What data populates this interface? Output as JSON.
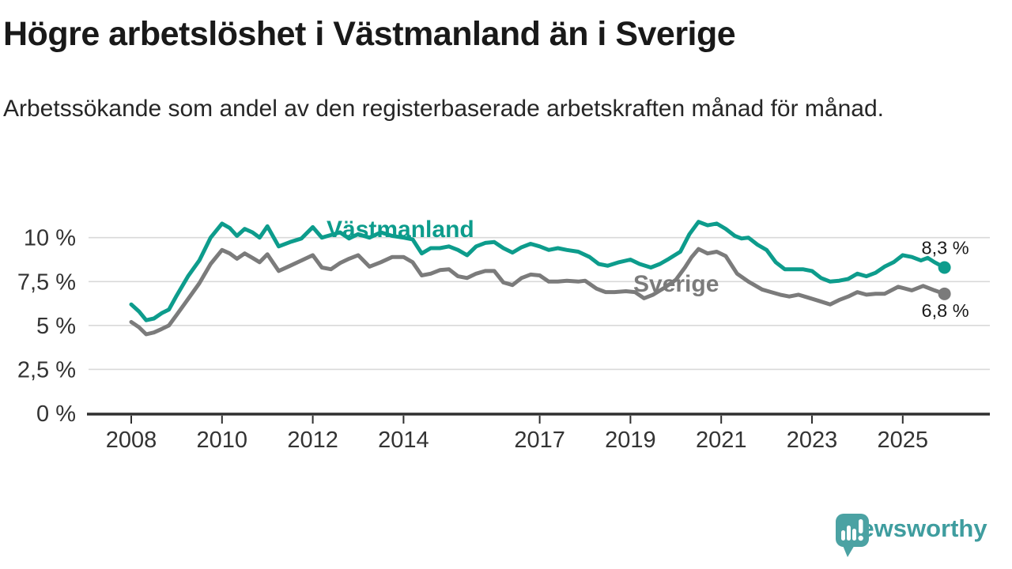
{
  "header": {
    "title": "Högre arbetslöshet i Västmanland än i Sverige",
    "subtitle": "Arbetssökande som andel av den registerbaserade arbetskraften månad för månad."
  },
  "footer": {
    "brand": "Newsworthy"
  },
  "colors": {
    "vastmanland": "#0d9c8c",
    "sverige": "#7b7b7b",
    "grid": "#d9d9d9",
    "axis": "#2f2f2f",
    "tick_label": "#333333",
    "value_label": "#1a1a1a",
    "logo": "#4ba2a3"
  },
  "chart_data": {
    "type": "line",
    "title": "Högre arbetslöshet i Västmanland än i Sverige",
    "subtitle": "Arbetssökande som andel av den registerbaserade arbetskraften månad för månad.",
    "unit": "%",
    "grid": "horizontal",
    "legend_position": "inline-labels",
    "xlim": [
      2007.0,
      2026.9
    ],
    "ylim": [
      0,
      11.7
    ],
    "x_ticks": [
      {
        "x": 2008,
        "label": "2008"
      },
      {
        "x": 2010,
        "label": "2010"
      },
      {
        "x": 2012,
        "label": "2012"
      },
      {
        "x": 2014,
        "label": "2014"
      },
      {
        "x": 2017,
        "label": "2017"
      },
      {
        "x": 2019,
        "label": "2019"
      },
      {
        "x": 2021,
        "label": "2021"
      },
      {
        "x": 2023,
        "label": "2023"
      },
      {
        "x": 2025,
        "label": "2025"
      }
    ],
    "y_ticks": [
      {
        "value": 0,
        "label": "0 %"
      },
      {
        "value": 2.5,
        "label": "2,5 %"
      },
      {
        "value": 5,
        "label": "5 %"
      },
      {
        "value": 7.5,
        "label": "7,5 %"
      },
      {
        "value": 10,
        "label": "10 %"
      }
    ],
    "series": [
      {
        "name": "Västmanland",
        "color": "#0d9c8c",
        "end_label": "8,3 %",
        "end_value": 8.3,
        "points": [
          [
            2008.0,
            6.2
          ],
          [
            2008.17,
            5.8
          ],
          [
            2008.33,
            5.3
          ],
          [
            2008.5,
            5.4
          ],
          [
            2008.67,
            5.7
          ],
          [
            2008.83,
            5.9
          ],
          [
            2009.0,
            6.7
          ],
          [
            2009.25,
            7.8
          ],
          [
            2009.5,
            8.7
          ],
          [
            2009.75,
            10.0
          ],
          [
            2010.0,
            10.8
          ],
          [
            2010.17,
            10.55
          ],
          [
            2010.33,
            10.1
          ],
          [
            2010.5,
            10.5
          ],
          [
            2010.67,
            10.3
          ],
          [
            2010.83,
            10.0
          ],
          [
            2011.0,
            10.65
          ],
          [
            2011.25,
            9.5
          ],
          [
            2011.5,
            9.75
          ],
          [
            2011.75,
            9.95
          ],
          [
            2012.0,
            10.6
          ],
          [
            2012.2,
            10.0
          ],
          [
            2012.4,
            10.15
          ],
          [
            2012.6,
            10.3
          ],
          [
            2012.8,
            9.95
          ],
          [
            2013.0,
            10.2
          ],
          [
            2013.25,
            10.0
          ],
          [
            2013.5,
            10.3
          ],
          [
            2013.75,
            10.1
          ],
          [
            2014.0,
            10.0
          ],
          [
            2014.2,
            9.9
          ],
          [
            2014.4,
            9.1
          ],
          [
            2014.6,
            9.4
          ],
          [
            2014.8,
            9.4
          ],
          [
            2015.0,
            9.5
          ],
          [
            2015.2,
            9.3
          ],
          [
            2015.4,
            9.0
          ],
          [
            2015.6,
            9.5
          ],
          [
            2015.8,
            9.7
          ],
          [
            2016.0,
            9.75
          ],
          [
            2016.2,
            9.4
          ],
          [
            2016.4,
            9.15
          ],
          [
            2016.6,
            9.45
          ],
          [
            2016.8,
            9.65
          ],
          [
            2017.0,
            9.5
          ],
          [
            2017.2,
            9.3
          ],
          [
            2017.4,
            9.4
          ],
          [
            2017.6,
            9.3
          ],
          [
            2017.85,
            9.2
          ],
          [
            2018.1,
            8.9
          ],
          [
            2018.3,
            8.5
          ],
          [
            2018.5,
            8.4
          ],
          [
            2018.75,
            8.6
          ],
          [
            2019.0,
            8.75
          ],
          [
            2019.2,
            8.5
          ],
          [
            2019.45,
            8.3
          ],
          [
            2019.65,
            8.5
          ],
          [
            2019.85,
            8.8
          ],
          [
            2020.1,
            9.2
          ],
          [
            2020.3,
            10.2
          ],
          [
            2020.5,
            10.9
          ],
          [
            2020.7,
            10.7
          ],
          [
            2020.9,
            10.8
          ],
          [
            2021.1,
            10.5
          ],
          [
            2021.3,
            10.1
          ],
          [
            2021.45,
            9.95
          ],
          [
            2021.6,
            10.0
          ],
          [
            2021.8,
            9.6
          ],
          [
            2022.0,
            9.3
          ],
          [
            2022.2,
            8.6
          ],
          [
            2022.4,
            8.2
          ],
          [
            2022.6,
            8.2
          ],
          [
            2022.8,
            8.2
          ],
          [
            2023.0,
            8.1
          ],
          [
            2023.2,
            7.7
          ],
          [
            2023.4,
            7.5
          ],
          [
            2023.6,
            7.55
          ],
          [
            2023.8,
            7.65
          ],
          [
            2024.0,
            7.95
          ],
          [
            2024.2,
            7.8
          ],
          [
            2024.4,
            8.0
          ],
          [
            2024.6,
            8.35
          ],
          [
            2024.8,
            8.6
          ],
          [
            2025.0,
            9.0
          ],
          [
            2025.2,
            8.9
          ],
          [
            2025.4,
            8.7
          ],
          [
            2025.55,
            8.85
          ],
          [
            2025.7,
            8.6
          ],
          [
            2025.92,
            8.3
          ]
        ]
      },
      {
        "name": "Sverige",
        "color": "#7b7b7b",
        "end_label": "6,8 %",
        "end_value": 6.8,
        "points": [
          [
            2008.0,
            5.2
          ],
          [
            2008.17,
            4.9
          ],
          [
            2008.33,
            4.5
          ],
          [
            2008.5,
            4.6
          ],
          [
            2008.67,
            4.8
          ],
          [
            2008.83,
            5.0
          ],
          [
            2009.0,
            5.6
          ],
          [
            2009.25,
            6.5
          ],
          [
            2009.5,
            7.4
          ],
          [
            2009.75,
            8.5
          ],
          [
            2010.0,
            9.3
          ],
          [
            2010.17,
            9.1
          ],
          [
            2010.33,
            8.8
          ],
          [
            2010.5,
            9.1
          ],
          [
            2010.67,
            8.85
          ],
          [
            2010.83,
            8.6
          ],
          [
            2011.0,
            9.05
          ],
          [
            2011.25,
            8.1
          ],
          [
            2011.5,
            8.4
          ],
          [
            2011.75,
            8.7
          ],
          [
            2012.0,
            9.0
          ],
          [
            2012.2,
            8.3
          ],
          [
            2012.4,
            8.2
          ],
          [
            2012.6,
            8.55
          ],
          [
            2012.8,
            8.8
          ],
          [
            2013.0,
            9.0
          ],
          [
            2013.25,
            8.35
          ],
          [
            2013.5,
            8.6
          ],
          [
            2013.75,
            8.9
          ],
          [
            2014.0,
            8.9
          ],
          [
            2014.2,
            8.6
          ],
          [
            2014.4,
            7.85
          ],
          [
            2014.6,
            7.95
          ],
          [
            2014.8,
            8.15
          ],
          [
            2015.0,
            8.2
          ],
          [
            2015.2,
            7.8
          ],
          [
            2015.4,
            7.7
          ],
          [
            2015.6,
            7.95
          ],
          [
            2015.8,
            8.1
          ],
          [
            2016.0,
            8.1
          ],
          [
            2016.2,
            7.45
          ],
          [
            2016.4,
            7.3
          ],
          [
            2016.6,
            7.7
          ],
          [
            2016.8,
            7.9
          ],
          [
            2017.0,
            7.85
          ],
          [
            2017.2,
            7.5
          ],
          [
            2017.4,
            7.5
          ],
          [
            2017.6,
            7.55
          ],
          [
            2017.85,
            7.5
          ],
          [
            2018.0,
            7.55
          ],
          [
            2018.25,
            7.1
          ],
          [
            2018.45,
            6.9
          ],
          [
            2018.65,
            6.9
          ],
          [
            2018.9,
            6.95
          ],
          [
            2019.1,
            6.9
          ],
          [
            2019.3,
            6.55
          ],
          [
            2019.5,
            6.75
          ],
          [
            2019.75,
            7.15
          ],
          [
            2020.0,
            7.6
          ],
          [
            2020.2,
            8.3
          ],
          [
            2020.35,
            8.9
          ],
          [
            2020.5,
            9.35
          ],
          [
            2020.7,
            9.1
          ],
          [
            2020.9,
            9.2
          ],
          [
            2021.1,
            8.95
          ],
          [
            2021.35,
            7.95
          ],
          [
            2021.6,
            7.5
          ],
          [
            2021.9,
            7.05
          ],
          [
            2022.1,
            6.9
          ],
          [
            2022.3,
            6.75
          ],
          [
            2022.5,
            6.65
          ],
          [
            2022.7,
            6.75
          ],
          [
            2022.9,
            6.6
          ],
          [
            2023.15,
            6.4
          ],
          [
            2023.4,
            6.2
          ],
          [
            2023.6,
            6.45
          ],
          [
            2023.8,
            6.65
          ],
          [
            2024.0,
            6.9
          ],
          [
            2024.2,
            6.75
          ],
          [
            2024.4,
            6.8
          ],
          [
            2024.6,
            6.8
          ],
          [
            2024.9,
            7.2
          ],
          [
            2025.2,
            7.0
          ],
          [
            2025.45,
            7.25
          ],
          [
            2025.7,
            7.0
          ],
          [
            2025.92,
            6.8
          ]
        ]
      }
    ]
  }
}
